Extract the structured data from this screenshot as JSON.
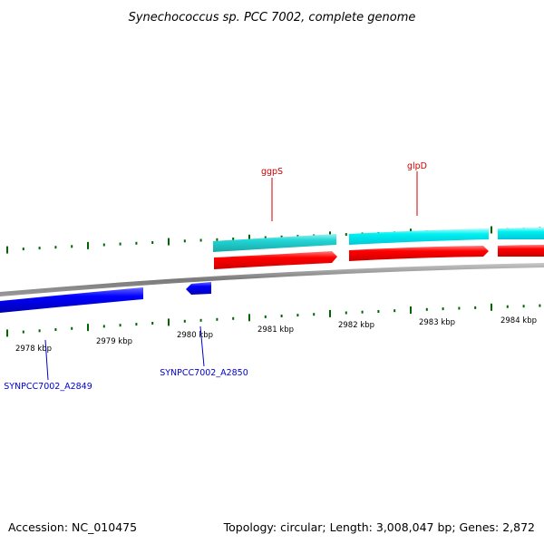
{
  "title": "Synechococcus sp. PCC 7002, complete genome",
  "footer": {
    "accession": "Accession: NC_010475",
    "summary": "Topology: circular; Length: 3,008,047 bp; Genes: 2,872"
  },
  "scale_labels": [
    "2978 kbp",
    "2979 kbp",
    "2980 kbp",
    "2981 kbp",
    "2982 kbp",
    "2983 kbp",
    "2984 kbp"
  ],
  "gene_labels": {
    "ggpS": "ggpS",
    "glpD": "glpD",
    "a2849": "SYNPCC7002_A2849",
    "a2850": "SYNPCC7002_A2850"
  },
  "colors": {
    "forward_cds": "#ff0000",
    "forward_gene": "#00cccc",
    "reverse_cds": "#0000ff",
    "backbone": "#808080",
    "tick": "#006600"
  }
}
